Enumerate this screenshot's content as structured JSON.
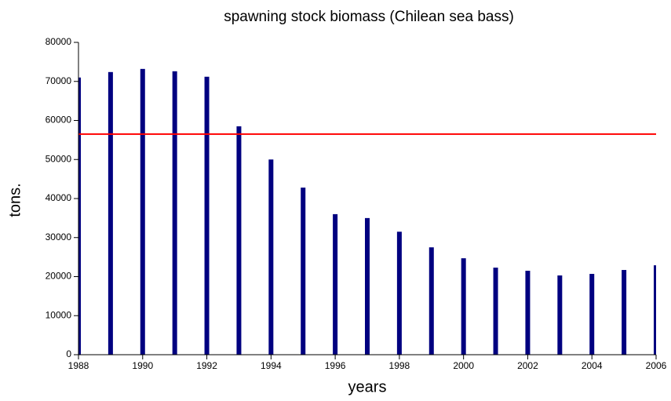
{
  "chart_data": {
    "type": "bar",
    "title": "spawning stock biomass (Chilean sea bass)",
    "xlabel": "years",
    "ylabel": "tons.",
    "x": [
      1988,
      1989,
      1990,
      1991,
      1992,
      1993,
      1994,
      1995,
      1996,
      1997,
      1998,
      1999,
      2000,
      2001,
      2002,
      2003,
      2004,
      2005,
      2006
    ],
    "values": [
      71000,
      72400,
      73200,
      72600,
      71200,
      58500,
      50000,
      42800,
      36000,
      35000,
      31500,
      27500,
      24700,
      22300,
      21500,
      20300,
      20700,
      21700,
      22900
    ],
    "color": "#000080",
    "hline": 56500,
    "hline_color": "#ff0000",
    "xlim": [
      1988,
      2006
    ],
    "xticks": [
      1988,
      1990,
      1992,
      1994,
      1996,
      1998,
      2000,
      2002,
      2004,
      2006
    ],
    "ylim": [
      0,
      80000
    ],
    "yticks": [
      0,
      10000,
      20000,
      30000,
      40000,
      50000,
      60000,
      70000,
      80000
    ]
  }
}
